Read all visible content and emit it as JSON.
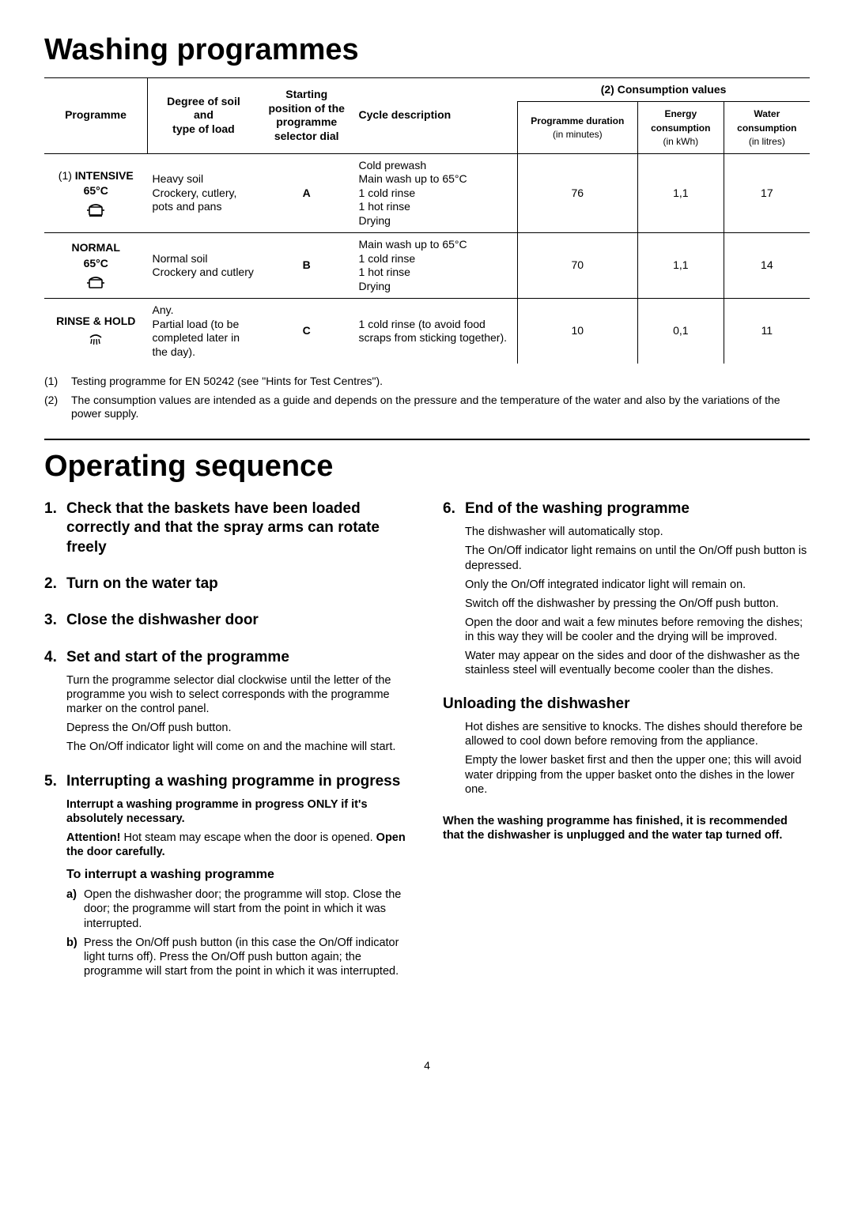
{
  "title1": "Washing programmes",
  "table": {
    "headers": {
      "programme": "Programme",
      "soil_line1": "Degree of soil",
      "soil_line2": "and",
      "soil_line3": "type of load",
      "start_line1": "Starting",
      "start_line2": "position of the",
      "start_line3": "programme",
      "start_line4": "selector dial",
      "cycle": "Cycle description",
      "consumption": "(2) Consumption values",
      "duration_line1": "Programme duration",
      "duration_line2": "(in minutes)",
      "energy_line1": "Energy",
      "energy_line2": "consumption",
      "energy_line3": "(in kWh)",
      "water_line1": "Water",
      "water_line2": "consumption",
      "water_line3": "(in litres)"
    },
    "rows": [
      {
        "prog_prefix": "(1) ",
        "prog_name": "INTENSIVE",
        "prog_temp": "65°C",
        "icon": "pot-heavy",
        "soil": "Heavy soil\nCrockery, cutlery, pots and pans",
        "position": "A",
        "cycle": "Cold prewash\nMain wash up to 65°C\n1 cold rinse\n1 hot rinse\nDrying",
        "duration": "76",
        "energy": "1,1",
        "water": "17"
      },
      {
        "prog_prefix": "",
        "prog_name": "NORMAL",
        "prog_temp": "65°C",
        "icon": "pot",
        "soil": "Normal soil\nCrockery and cutlery",
        "position": "B",
        "cycle": "Main wash up to 65°C\n1 cold rinse\n1 hot rinse\nDrying",
        "duration": "70",
        "energy": "1,1",
        "water": "14"
      },
      {
        "prog_prefix": "",
        "prog_name": "RINSE & HOLD",
        "prog_temp": "",
        "icon": "shower",
        "soil": "Any.\nPartial load (to be completed later in the day).",
        "position": "C",
        "cycle": "1 cold rinse (to avoid food scraps from sticking together).",
        "duration": "10",
        "energy": "0,1",
        "water": "11"
      }
    ]
  },
  "footnotes": [
    {
      "num": "(1)",
      "text": "Testing programme for EN 50242 (see \"Hints for Test Centres\")."
    },
    {
      "num": "(2)",
      "text": "The consumption values are intended as a guide and depends on the pressure and the temperature of the water and also by the variations of the power supply."
    }
  ],
  "title2": "Operating sequence",
  "left_steps": {
    "s1": {
      "num": "1.",
      "title": "Check that the baskets have been loaded correctly and that the spray arms can rotate freely"
    },
    "s2": {
      "num": "2.",
      "title": "Turn on the water tap"
    },
    "s3": {
      "num": "3.",
      "title": "Close the dishwasher door"
    },
    "s4": {
      "num": "4.",
      "title": "Set and start of the programme",
      "p1": "Turn the programme selector dial clockwise until the letter of the programme you wish to select corresponds with the programme marker on the control panel.",
      "p2": "Depress the On/Off push button.",
      "p3": "The On/Off indicator light will come on and the machine will start."
    },
    "s5": {
      "num": "5.",
      "title": "Interrupting a washing programme in progress",
      "bold1": "Interrupt a washing programme in progress ONLY if it's absolutely necessary.",
      "attn_label": "Attention!",
      "attn_text": " Hot steam may escape when the door is opened. ",
      "attn_bold2": "Open the door carefully.",
      "subhead": "To interrupt a washing programme",
      "a_label": "a)",
      "a_text": "Open the dishwasher door; the programme will stop. Close the door; the programme will start from the point in which it was interrupted.",
      "b_label": "b)",
      "b_text": "Press the On/Off push button (in this case the On/Off indicator light turns off). Press the On/Off push button again; the programme will start from the point in which it was interrupted."
    }
  },
  "right_steps": {
    "s6": {
      "num": "6.",
      "title": "End of the washing programme",
      "p1": "The dishwasher will automatically stop.",
      "p2": "The On/Off indicator light remains on until the On/Off push button is depressed.",
      "p3": "Only the On/Off integrated indicator light will remain on.",
      "p4": "Switch off the dishwasher by pressing the On/Off push button.",
      "p5": "Open the door and wait a few minutes before removing the dishes; in this way they will be cooler and the drying will be improved.",
      "p6": "Water may appear on the sides and door of the dishwasher as the stainless steel will eventually become cooler than the dishes."
    },
    "unload": {
      "title": "Unloading the dishwasher",
      "p1": "Hot dishes are sensitive to knocks. The dishes should therefore be allowed to cool down before removing from the appliance.",
      "p2": "Empty the lower basket first and then the upper one; this will avoid water dripping from the upper basket onto the dishes in the lower one."
    },
    "final_bold": "When the washing programme has finished, it is recommended that the dishwasher is unplugged and the water tap turned off."
  },
  "page_number": "4"
}
